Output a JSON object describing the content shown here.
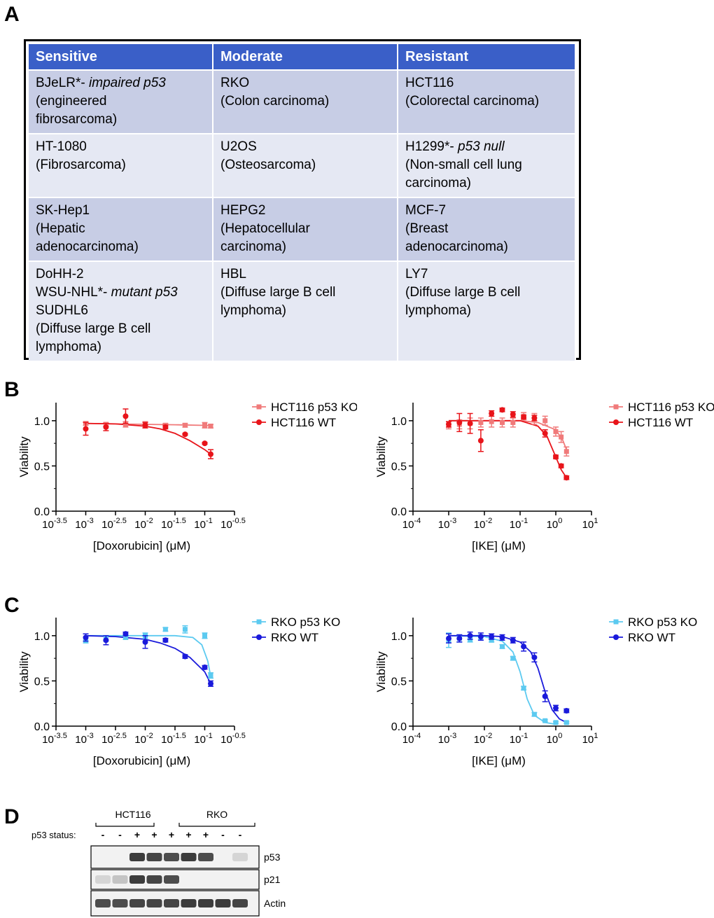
{
  "panels": {
    "a": "A",
    "b": "B",
    "c": "C",
    "d": "D"
  },
  "table": {
    "headers": [
      "Sensitive",
      "Moderate",
      "Resistant"
    ],
    "rows": [
      [
        [
          [
            "BJeLR*- ",
            "impaired p53"
          ],
          "(engineered",
          "fibrosarcoma)"
        ],
        [
          "RKO",
          "(Colon carcinoma)"
        ],
        [
          "HCT116",
          "(Colorectal carcinoma)"
        ]
      ],
      [
        [
          "HT-1080",
          "(Fibrosarcoma)"
        ],
        [
          "U2OS",
          "(Osteosarcoma)"
        ],
        [
          [
            "H1299*- ",
            "p53 null"
          ],
          "(Non-small cell lung",
          "carcinoma)"
        ]
      ],
      [
        [
          "SK-Hep1",
          "(Hepatic",
          "adenocarcinoma)"
        ],
        [
          "HEPG2",
          "(Hepatocellular",
          "carcinoma)"
        ],
        [
          "MCF-7",
          "(Breast",
          "adenocarcinoma)"
        ]
      ],
      [
        [
          "DoHH-2",
          [
            "WSU-NHL*- ",
            "mutant p53"
          ],
          "SUDHL6",
          "(Diffuse large B cell",
          "lymphoma)"
        ],
        [
          "HBL",
          "(Diffuse large B cell",
          "lymphoma)"
        ],
        [
          "LY7",
          "(Diffuse large B cell",
          "lymphoma)"
        ]
      ]
    ]
  },
  "colors": {
    "ko_red": "#f07a7a",
    "wt_red": "#e8141a",
    "ko_blue": "#5ccaf0",
    "wt_blue": "#1a1adb"
  },
  "chart_data": [
    {
      "id": "b-left",
      "type": "scatter",
      "ylabel": "Viability",
      "xlabel": "[Doxorubicin] (μM)",
      "xlim_log10": [
        -3.5,
        -0.5
      ],
      "ylim": [
        0,
        1.2
      ],
      "yticks": [
        "0.0",
        "0.5",
        "1.0"
      ],
      "xticks": [
        {
          "base": "10",
          "exp": "-3.5"
        },
        {
          "base": "10",
          "exp": "-3"
        },
        {
          "base": "10",
          "exp": "-2.5"
        },
        {
          "base": "10",
          "exp": "-2"
        },
        {
          "base": "10",
          "exp": "-1.5"
        },
        {
          "base": "10",
          "exp": "-1"
        },
        {
          "base": "10",
          "exp": "-0.5"
        }
      ],
      "series": [
        {
          "name": "HCT116 p53 KO",
          "color_key": "ko_red",
          "marker": "square",
          "x_log10": [
            -3.0,
            -2.66,
            -2.33,
            -2.0,
            -1.66,
            -1.33,
            -1.0,
            -0.9
          ],
          "y": [
            0.97,
            0.96,
            0.96,
            0.96,
            0.95,
            0.95,
            0.95,
            0.94
          ],
          "err": [
            0.02,
            0.02,
            0.03,
            0.03,
            0.02,
            0.02,
            0.03,
            0.02
          ]
        },
        {
          "name": "HCT116 WT",
          "color_key": "wt_red",
          "marker": "circle",
          "x_log10": [
            -3.0,
            -2.66,
            -2.33,
            -2.0,
            -1.66,
            -1.33,
            -1.0,
            -0.9
          ],
          "y": [
            0.91,
            0.93,
            1.05,
            0.95,
            0.93,
            0.85,
            0.75,
            0.63
          ],
          "err": [
            0.07,
            0.04,
            0.08,
            0.03,
            0.02,
            0.01,
            0.01,
            0.05
          ]
        }
      ],
      "curves": [
        {
          "color_key": "ko_red",
          "x_log10": [
            -3.0,
            -2.5,
            -2.0,
            -1.5,
            -1.0,
            -0.9
          ],
          "y": [
            0.97,
            0.965,
            0.96,
            0.955,
            0.948,
            0.945
          ]
        },
        {
          "color_key": "wt_red",
          "x_log10": [
            -3.0,
            -2.5,
            -2.0,
            -1.75,
            -1.5,
            -1.25,
            -1.0,
            -0.9
          ],
          "y": [
            0.97,
            0.965,
            0.94,
            0.91,
            0.86,
            0.78,
            0.68,
            0.63
          ]
        }
      ]
    },
    {
      "id": "b-right",
      "type": "scatter",
      "ylabel": "Viability",
      "xlabel": "[IKE] (μM)",
      "xlim_log10": [
        -4,
        1
      ],
      "ylim": [
        0,
        1.2
      ],
      "yticks": [
        "0.0",
        "0.5",
        "1.0"
      ],
      "xticks": [
        {
          "base": "10",
          "exp": "-4"
        },
        {
          "base": "10",
          "exp": "-3"
        },
        {
          "base": "10",
          "exp": "-2"
        },
        {
          "base": "10",
          "exp": "-1"
        },
        {
          "base": "10",
          "exp": "0"
        },
        {
          "base": "10",
          "exp": "1"
        }
      ],
      "series": [
        {
          "name": "HCT116 p53 KO",
          "color_key": "ko_red",
          "marker": "square",
          "x_log10": [
            -3.0,
            -2.7,
            -2.4,
            -2.1,
            -1.8,
            -1.5,
            -1.2,
            -0.9,
            -0.6,
            -0.3,
            0.0,
            0.15,
            0.3
          ],
          "y": [
            0.95,
            0.96,
            0.97,
            0.98,
            0.99,
            0.98,
            0.98,
            1.05,
            1.02,
            1.0,
            0.88,
            0.82,
            0.66
          ],
          "err": [
            0.04,
            0.05,
            0.06,
            0.05,
            0.06,
            0.05,
            0.05,
            0.04,
            0.06,
            0.05,
            0.05,
            0.06,
            0.05
          ]
        },
        {
          "name": "HCT116 WT",
          "color_key": "wt_red",
          "marker": "circle",
          "x_log10": [
            -3.0,
            -2.7,
            -2.4,
            -2.1,
            -1.8,
            -1.5,
            -1.2,
            -0.9,
            -0.6,
            -0.3,
            0.0,
            0.15,
            0.3
          ],
          "y": [
            0.96,
            0.98,
            0.97,
            0.78,
            1.08,
            1.12,
            1.07,
            1.04,
            1.03,
            0.86,
            0.6,
            0.5,
            0.37
          ],
          "err": [
            0.03,
            0.1,
            0.11,
            0.12,
            0.03,
            0.02,
            0.03,
            0.02,
            0.03,
            0.04,
            0.02,
            0.02,
            0.02
          ]
        }
      ],
      "curves": [
        {
          "color_key": "ko_red",
          "x_log10": [
            -3.0,
            -2.0,
            -1.0,
            -0.5,
            0.0,
            0.2,
            0.3
          ],
          "y": [
            1.0,
            1.0,
            1.0,
            0.98,
            0.9,
            0.78,
            0.68
          ]
        },
        {
          "color_key": "wt_red",
          "x_log10": [
            -3.0,
            -2.0,
            -1.0,
            -0.5,
            -0.25,
            0.0,
            0.15,
            0.3
          ],
          "y": [
            1.0,
            1.0,
            1.0,
            0.94,
            0.83,
            0.6,
            0.46,
            0.37
          ]
        }
      ]
    },
    {
      "id": "c-left",
      "type": "scatter",
      "ylabel": "Viability",
      "xlabel": "[Doxorubicin] (μM)",
      "xlim_log10": [
        -3.5,
        -0.5
      ],
      "ylim": [
        0,
        1.2
      ],
      "yticks": [
        "0.0",
        "0.5",
        "1.0"
      ],
      "xticks": [
        {
          "base": "10",
          "exp": "-3.5"
        },
        {
          "base": "10",
          "exp": "-3"
        },
        {
          "base": "10",
          "exp": "-2.5"
        },
        {
          "base": "10",
          "exp": "-2"
        },
        {
          "base": "10",
          "exp": "-1.5"
        },
        {
          "base": "10",
          "exp": "-1"
        },
        {
          "base": "10",
          "exp": "-0.5"
        }
      ],
      "series": [
        {
          "name": "RKO p53 KO",
          "color_key": "ko_blue",
          "marker": "square",
          "x_log10": [
            -3.0,
            -2.66,
            -2.33,
            -2.0,
            -1.66,
            -1.33,
            -1.0,
            -0.9
          ],
          "y": [
            0.95,
            0.97,
            0.98,
            1.0,
            1.07,
            1.07,
            1.0,
            0.56
          ],
          "err": [
            0.03,
            0.03,
            0.02,
            0.03,
            0.02,
            0.04,
            0.03,
            0.03
          ]
        },
        {
          "name": "RKO WT",
          "color_key": "wt_blue",
          "marker": "circle",
          "x_log10": [
            -3.0,
            -2.66,
            -2.33,
            -2.0,
            -1.66,
            -1.33,
            -1.0,
            -0.9
          ],
          "y": [
            0.98,
            0.95,
            1.02,
            0.93,
            0.95,
            0.77,
            0.65,
            0.47
          ],
          "err": [
            0.04,
            0.05,
            0.02,
            0.07,
            0.02,
            0.02,
            0.02,
            0.03
          ]
        }
      ],
      "curves": [
        {
          "color_key": "ko_blue",
          "x_log10": [
            -3.0,
            -2.0,
            -1.5,
            -1.2,
            -1.05,
            -0.95,
            -0.9
          ],
          "y": [
            1.0,
            1.0,
            1.0,
            0.98,
            0.9,
            0.72,
            0.55
          ]
        },
        {
          "color_key": "wt_blue",
          "x_log10": [
            -3.0,
            -2.5,
            -2.0,
            -1.75,
            -1.5,
            -1.25,
            -1.0,
            -0.9
          ],
          "y": [
            1.0,
            0.99,
            0.96,
            0.92,
            0.86,
            0.76,
            0.6,
            0.47
          ]
        }
      ]
    },
    {
      "id": "c-right",
      "type": "scatter",
      "ylabel": "Viability",
      "xlabel": "[IKE] (μM)",
      "xlim_log10": [
        -4,
        1
      ],
      "ylim": [
        0,
        1.2
      ],
      "yticks": [
        "0.0",
        "0.5",
        "1.0"
      ],
      "xticks": [
        {
          "base": "10",
          "exp": "-4"
        },
        {
          "base": "10",
          "exp": "-3"
        },
        {
          "base": "10",
          "exp": "-2"
        },
        {
          "base": "10",
          "exp": "-1"
        },
        {
          "base": "10",
          "exp": "0"
        },
        {
          "base": "10",
          "exp": "1"
        }
      ],
      "series": [
        {
          "name": "RKO p53 KO",
          "color_key": "ko_blue",
          "marker": "square",
          "x_log10": [
            -3.0,
            -2.7,
            -2.4,
            -2.1,
            -1.8,
            -1.5,
            -1.2,
            -0.9,
            -0.6,
            -0.3,
            0.0,
            0.3
          ],
          "y": [
            0.95,
            0.97,
            0.96,
            0.98,
            0.95,
            0.88,
            0.75,
            0.42,
            0.13,
            0.06,
            0.04,
            0.04
          ],
          "err": [
            0.08,
            0.04,
            0.03,
            0.03,
            0.02,
            0.02,
            0.02,
            0.02,
            0.02,
            0.01,
            0.01,
            0.01
          ]
        },
        {
          "name": "RKO WT",
          "color_key": "wt_blue",
          "marker": "circle",
          "x_log10": [
            -3.0,
            -2.7,
            -2.4,
            -2.1,
            -1.8,
            -1.5,
            -1.2,
            -0.9,
            -0.6,
            -0.3,
            0.0,
            0.3
          ],
          "y": [
            0.97,
            0.97,
            1.0,
            0.99,
            0.99,
            0.98,
            0.95,
            0.88,
            0.76,
            0.33,
            0.2,
            0.17
          ],
          "err": [
            0.05,
            0.04,
            0.04,
            0.04,
            0.03,
            0.03,
            0.03,
            0.05,
            0.05,
            0.06,
            0.03,
            0.02
          ]
        }
      ],
      "curves": [
        {
          "color_key": "ko_blue",
          "x_log10": [
            -3.0,
            -2.0,
            -1.5,
            -1.2,
            -1.0,
            -0.8,
            -0.6,
            -0.3,
            0.0
          ],
          "y": [
            1.0,
            0.99,
            0.94,
            0.82,
            0.6,
            0.3,
            0.12,
            0.04,
            0.02
          ]
        },
        {
          "color_key": "wt_blue",
          "x_log10": [
            -3.0,
            -2.0,
            -1.5,
            -1.0,
            -0.7,
            -0.5,
            -0.3,
            -0.1,
            0.1,
            0.3
          ],
          "y": [
            1.0,
            1.0,
            0.99,
            0.93,
            0.82,
            0.64,
            0.38,
            0.18,
            0.08,
            0.04
          ]
        }
      ]
    }
  ],
  "blot": {
    "groups": [
      "HCT116",
      "RKO"
    ],
    "status_label": "p53 status:",
    "lanes": [
      "-",
      "-",
      "+",
      "+",
      "+",
      "+",
      "+",
      "-",
      "-"
    ],
    "bands": [
      {
        "label": "p53",
        "intensity": [
          0,
          0,
          1,
          0.95,
          0.9,
          1,
          0.9,
          0,
          0.1
        ]
      },
      {
        "label": "p21",
        "intensity": [
          0.1,
          0.2,
          1,
          0.95,
          0.9,
          0,
          0,
          0,
          0
        ]
      },
      {
        "label": "Actin",
        "intensity": [
          0.9,
          0.9,
          0.95,
          0.95,
          0.95,
          1,
          1,
          1,
          0.95
        ]
      }
    ]
  }
}
